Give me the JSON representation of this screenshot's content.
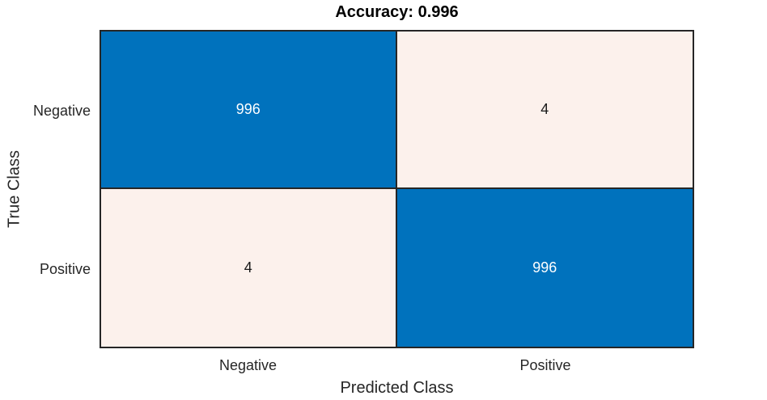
{
  "chart_data": {
    "type": "heatmap",
    "subtype": "confusion-matrix",
    "title": "Accuracy: 0.996",
    "accuracy": 0.996,
    "xlabel": "Predicted Class",
    "ylabel": "True Class",
    "x_categories": [
      "Negative",
      "Positive"
    ],
    "y_categories": [
      "Negative",
      "Positive"
    ],
    "values": [
      [
        996,
        4
      ],
      [
        4,
        996
      ]
    ],
    "grid": true,
    "legend": "none",
    "colors": {
      "diagonal_bg": "#0072BD",
      "diagonal_text": "#FFFFFF",
      "off_diagonal_bg": "#FCF1EC",
      "off_diagonal_text": "#1A1A1A",
      "grid_line": "#262626",
      "label_text": "#262626",
      "title_text": "#000000",
      "background": "#FFFFFF"
    }
  }
}
